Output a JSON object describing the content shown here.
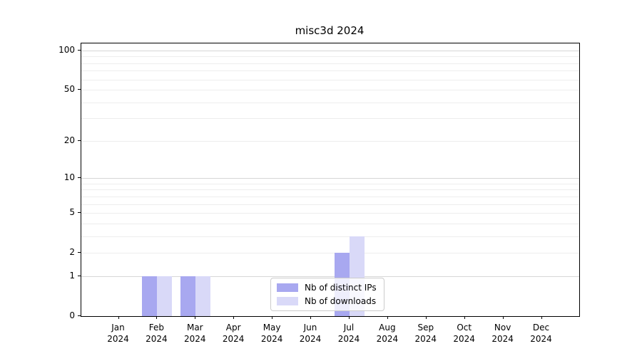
{
  "chart_data": {
    "type": "bar",
    "title": "misc3d 2024",
    "categories": [
      "Jan",
      "Feb",
      "Mar",
      "Apr",
      "May",
      "Jun",
      "Jul",
      "Aug",
      "Sep",
      "Oct",
      "Nov",
      "Dec"
    ],
    "x_tick_year": "2024",
    "series": [
      {
        "name": "Nb of distinct IPs",
        "color": "#a8a8f0",
        "values": [
          0,
          1,
          1,
          0,
          0,
          0,
          2,
          0,
          0,
          0,
          0,
          0
        ]
      },
      {
        "name": "Nb of downloads",
        "color": "#d9d9f8",
        "values": [
          0,
          1,
          1,
          0,
          0,
          0,
          3,
          0,
          0,
          0,
          0,
          0
        ]
      }
    ],
    "yscale": "log1p",
    "y_ticks": [
      0,
      1,
      2,
      5,
      10,
      20,
      50,
      100
    ],
    "ylim": [
      0,
      113
    ],
    "xlabel": "",
    "ylabel": "",
    "grid": "horizontal",
    "legend_position": "inside-bottom-center",
    "background_color": "#ffffff",
    "grid_major_color": "#d6d6d6",
    "grid_minor_color": "#ededed",
    "axis_color": "#000000"
  }
}
